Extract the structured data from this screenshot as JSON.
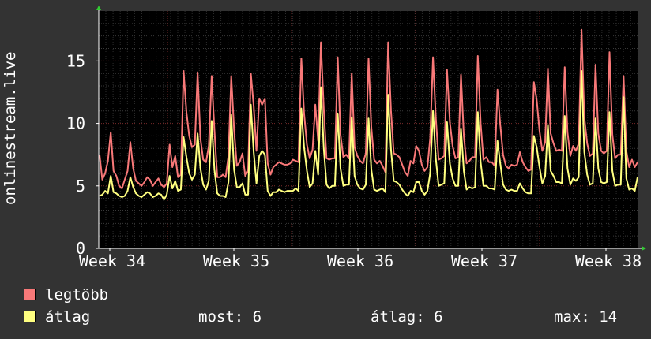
{
  "chart_data": {
    "type": "line",
    "title": "",
    "xlabel": "",
    "ylabel": "onlinestream.live",
    "ylim": [
      0,
      19
    ],
    "yticks": [
      0,
      5,
      10,
      15
    ],
    "ytick_labels": [
      "0",
      "5",
      "10",
      "15"
    ],
    "xtick_labels": [
      "Week 34",
      "Week 35",
      "Week 36",
      "Week 37",
      "Week 38"
    ],
    "grid": true,
    "legend_placement": "bottom-left",
    "series": [
      {
        "name": "legtöbb",
        "color": "#f87878",
        "values": [
          7.5,
          5.5,
          6,
          7,
          9.3,
          6.2,
          5.8,
          5,
          4.8,
          5.5,
          6.2,
          8.5,
          6.4,
          5.4,
          5.2,
          5,
          5.3,
          5.7,
          5.5,
          5,
          5.3,
          5.6,
          5.1,
          4.9,
          5.2,
          8.3,
          6.5,
          7.4,
          5.7,
          5.9,
          14.2,
          10.9,
          9,
          8.1,
          8.3,
          14.1,
          8.8,
          7.1,
          6.9,
          8.2,
          13.8,
          9.5,
          5.7,
          5.7,
          5.9,
          5.7,
          7.4,
          13.8,
          9.5,
          6.6,
          6.9,
          7.6,
          5.8,
          6.2,
          14,
          11.4,
          7.8,
          12,
          11.5,
          12,
          6.8,
          5.9,
          6.5,
          6.7,
          6.9,
          6.8,
          6.7,
          6.7,
          6.8,
          7.1,
          7,
          6.9,
          15.2,
          10.8,
          8.3,
          7.2,
          7.9,
          11.5,
          8.6,
          16.5,
          11.2,
          7.2,
          7.1,
          7.2,
          7.2,
          15.3,
          9.1,
          7.3,
          7.5,
          7.2,
          14,
          8.1,
          7.4,
          7,
          6.8,
          7.6,
          15.2,
          9.7,
          7.1,
          6.8,
          7,
          6.6,
          6.1,
          16.5,
          11,
          7.6,
          7.5,
          7.3,
          6.7,
          6.1,
          5.8,
          7,
          6.8,
          8.2,
          7.8,
          6.7,
          6.2,
          6.5,
          8.8,
          15.3,
          10.5,
          7.1,
          7.2,
          7.4,
          14.3,
          10.1,
          8.2,
          7.2,
          7.3,
          13.9,
          9,
          6.8,
          7,
          7.3,
          7.3,
          15.4,
          10,
          7.1,
          7.3,
          6.9,
          6.9,
          6.6,
          12.7,
          9.9,
          7.5,
          6.6,
          6.4,
          6.7,
          6.6,
          6.7,
          7.7,
          6.9,
          6.5,
          6.2,
          6.3,
          13.3,
          11.9,
          9.4,
          7.8,
          8.5,
          14.4,
          9.2,
          8.4,
          7.8,
          7.9,
          7.8,
          14.5,
          9.3,
          7.4,
          8.2,
          7.8,
          8.4,
          17.5,
          10.5,
          8.4,
          7.4,
          7.6,
          14.7,
          9.2,
          7.8,
          7.6,
          7.8,
          15.7,
          9.1,
          7.2,
          7.5,
          7.5,
          13.8,
          7.8,
          6.5,
          7.1,
          6.5,
          6.9
        ]
      },
      {
        "name": "átlag",
        "color": "#ffff80",
        "values": [
          4.2,
          4.3,
          4.6,
          4.4,
          5.8,
          4.5,
          4.4,
          4.2,
          4.1,
          4.2,
          4.6,
          5.7,
          4.9,
          4.4,
          4.2,
          4.1,
          4.3,
          4.5,
          4.4,
          4.1,
          4.2,
          4.4,
          4.3,
          3.9,
          4.3,
          5.8,
          4.8,
          5.4,
          4.6,
          4.7,
          8.9,
          7.3,
          6,
          5.5,
          5.9,
          9.2,
          6.4,
          5.1,
          4.7,
          5.4,
          10.2,
          6.3,
          4.4,
          4.2,
          4.2,
          4.1,
          5.3,
          10.7,
          6.3,
          4.9,
          4.9,
          5.2,
          4.3,
          4.3,
          11.5,
          7.7,
          5.2,
          7.4,
          7.8,
          7.5,
          4.6,
          4.2,
          4.5,
          4.5,
          4.7,
          4.6,
          4.5,
          4.6,
          4.6,
          4.6,
          4.8,
          4.6,
          11.2,
          8.1,
          6.2,
          4.9,
          5.2,
          7.8,
          5.9,
          12.9,
          8,
          5.1,
          4.8,
          5,
          5,
          10.8,
          6.4,
          5,
          5.1,
          5.1,
          10.5,
          5.8,
          5.1,
          4.8,
          4.7,
          5.1,
          10.4,
          6.3,
          4.7,
          4.6,
          4.7,
          4.8,
          4.5,
          12.3,
          7.9,
          5.4,
          5.3,
          5.1,
          4.7,
          4.4,
          4.2,
          4.6,
          4.5,
          5.3,
          5.3,
          4.6,
          4.3,
          4.6,
          6,
          11,
          7.2,
          5,
          5.1,
          5.2,
          10.1,
          6.8,
          5.6,
          5,
          5,
          9.6,
          6.2,
          4.7,
          4.9,
          4.8,
          4.9,
          10.9,
          6.9,
          5,
          5,
          4.8,
          4.8,
          4.7,
          8.6,
          6.8,
          5.1,
          4.7,
          4.6,
          4.7,
          4.6,
          4.6,
          5.2,
          4.8,
          4.5,
          4.4,
          4.4,
          9,
          8.1,
          6.5,
          5.2,
          5.8,
          9.9,
          6.2,
          5.8,
          5.3,
          5.3,
          5.2,
          10.6,
          6.4,
          5.1,
          5.6,
          5.4,
          5.7,
          14.2,
          7.7,
          5.9,
          5.1,
          5.2,
          10.4,
          6.4,
          5.3,
          5.2,
          5.3,
          10.9,
          6.2,
          5,
          5.1,
          5.1,
          12.1,
          5.6,
          4.7,
          4.8,
          4.6,
          5.7
        ]
      }
    ]
  },
  "legend": [
    {
      "label": "legtöbb",
      "color": "#f87878"
    },
    {
      "label": "átlag",
      "color": "#ffff80"
    }
  ],
  "stats": {
    "now_label": "most:",
    "now_value": "6",
    "avg_label": "átlag:",
    "avg_value": "6",
    "max_label": "max:",
    "max_value": "14"
  }
}
